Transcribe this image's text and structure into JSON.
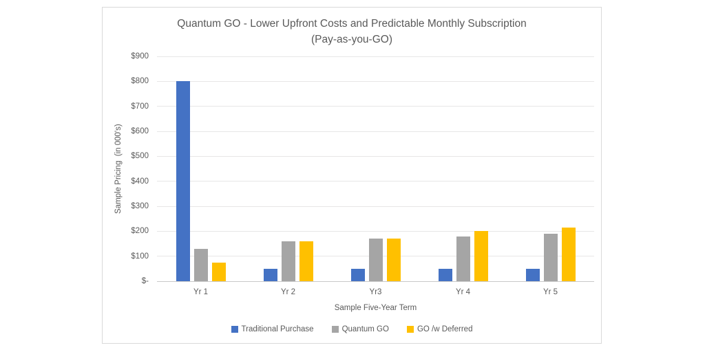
{
  "title": {
    "line1": "Quantum GO - Lower Upfront Costs and Predictable Monthly Subscription",
    "line2": "(Pay-as-you-GO)"
  },
  "chart_data": {
    "type": "bar",
    "title": "Quantum GO - Lower Upfront Costs and Predictable Monthly Subscription (Pay-as-you-GO)",
    "categories": [
      "Yr 1",
      "Yr 2",
      "Yr3",
      "Yr 4",
      "Yr 5"
    ],
    "series": [
      {
        "name": "Traditional Purchase",
        "color": "#4472C4",
        "values": [
          800,
          50,
          50,
          50,
          50
        ]
      },
      {
        "name": "Quantum GO",
        "color": "#A5A5A5",
        "values": [
          130,
          160,
          170,
          180,
          190
        ]
      },
      {
        "name": "GO /w Deferred",
        "color": "#FFC000",
        "values": [
          75,
          160,
          170,
          200,
          215
        ]
      }
    ],
    "xlabel": "Sample Five-Year Term",
    "ylabel": "Sample Pricing  (in 000's)",
    "ylim": [
      0,
      900
    ],
    "ytick_step": 100,
    "ytick_labels": [
      "$-",
      "$100",
      "$200",
      "$300",
      "$400",
      "$500",
      "$600",
      "$700",
      "$800",
      "$900"
    ],
    "grid": true,
    "legend_position": "bottom"
  },
  "colors": {
    "panel_border": "#D9D9D9",
    "gridline": "#E7E6E6",
    "axis_line": "#C9C9C9",
    "text": "#595959"
  }
}
